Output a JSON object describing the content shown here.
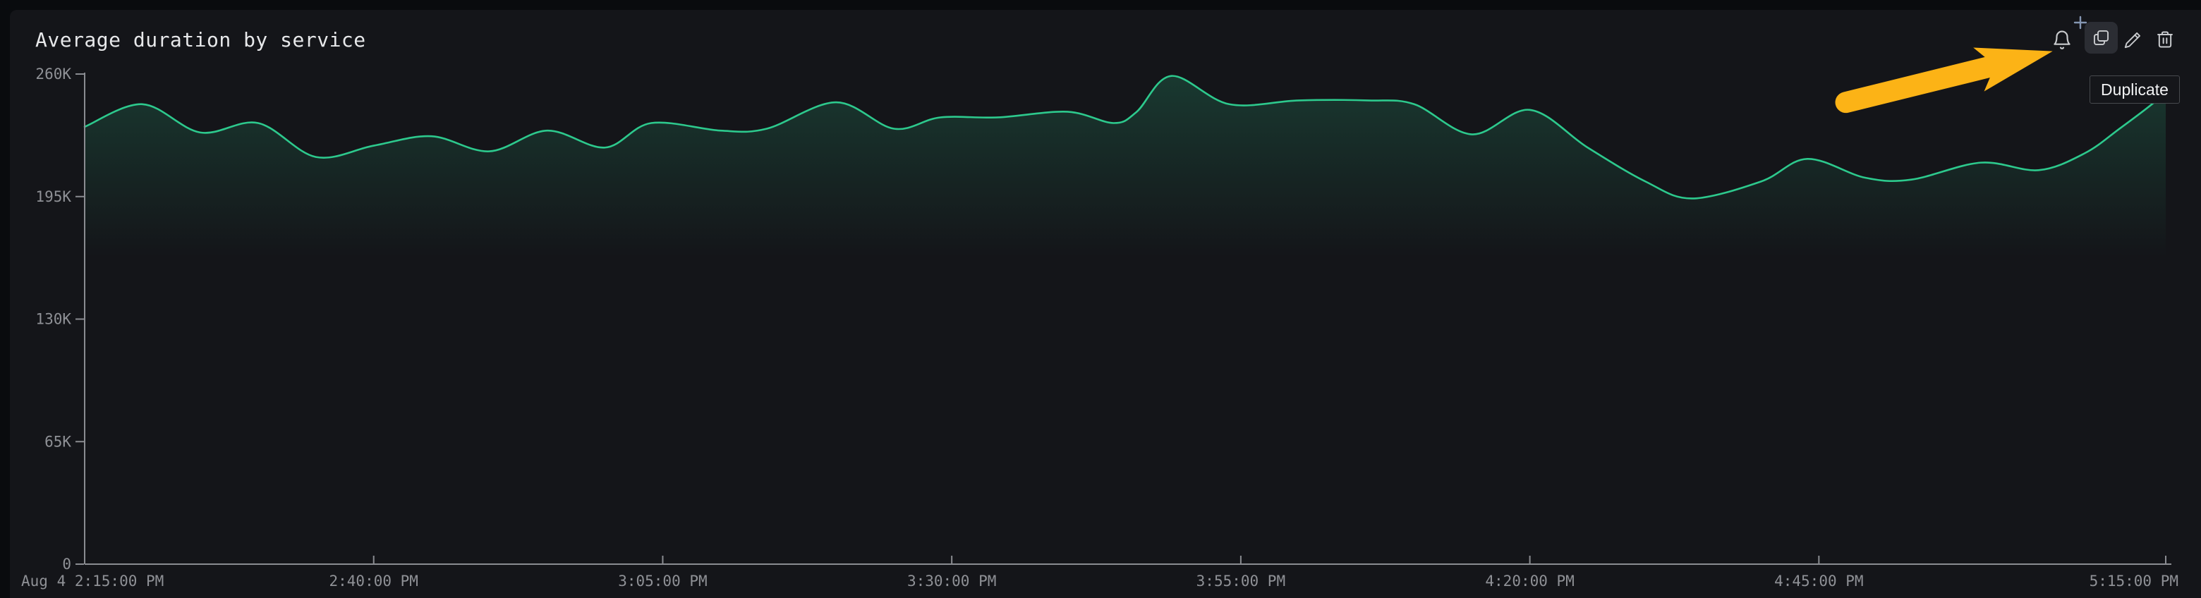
{
  "panel": {
    "title": "Average duration by service"
  },
  "toolbar": {
    "buttons": [
      {
        "name": "create-monitor",
        "icon": "bell-plus-icon",
        "state": "normal"
      },
      {
        "name": "duplicate",
        "icon": "duplicate-icon",
        "state": "hovered"
      },
      {
        "name": "edit",
        "icon": "pencil-icon",
        "state": "normal"
      },
      {
        "name": "delete",
        "icon": "trash-icon",
        "state": "normal"
      }
    ]
  },
  "tooltip": {
    "label": "Duplicate",
    "target": "duplicate-button"
  },
  "annotation": {
    "type": "arrow",
    "color": "#FCB316",
    "points_to": "duplicate-button"
  },
  "colors": {
    "background_outer": "#090b0e",
    "background_panel": "#141519",
    "line_green": "#2dc98d",
    "area_fill_green": "rgba(45,201,141,0.20)",
    "axis_line": "#8a8c91",
    "axis_label": "#8f9196",
    "title_text": "#e7e8ea",
    "icon_gray": "#c9cbce",
    "plus_blue_gray": "#8496b2",
    "arrow_yellow": "#FCB316",
    "hover_button_bg": "#2b2d33"
  },
  "chart_data": {
    "type": "line",
    "title": "Average duration by service",
    "xlabel": "",
    "ylabel": "",
    "grid": false,
    "legend": "none",
    "ylim": [
      0,
      260000
    ],
    "x_total_minutes": 180,
    "x_start_label": "Aug 4 2:15:00 PM",
    "x_end_label": "5:15:00 PM",
    "y_ticks": [
      {
        "v": 0,
        "label": "0"
      },
      {
        "v": 65000,
        "label": "65K"
      },
      {
        "v": 130000,
        "label": "130K"
      },
      {
        "v": 195000,
        "label": "195K"
      },
      {
        "v": 260000,
        "label": "260K"
      }
    ],
    "x_ticks": [
      {
        "t": 0,
        "label": "Aug 4 2:15:00 PM",
        "align": "start"
      },
      {
        "t": 25,
        "label": "2:40:00 PM"
      },
      {
        "t": 50,
        "label": "3:05:00 PM"
      },
      {
        "t": 75,
        "label": "3:30:00 PM"
      },
      {
        "t": 100,
        "label": "3:55:00 PM"
      },
      {
        "t": 125,
        "label": "4:20:00 PM"
      },
      {
        "t": 150,
        "label": "4:45:00 PM"
      },
      {
        "t": 180,
        "label": "5:15:00 PM",
        "align": "end"
      }
    ],
    "series": [
      {
        "name": "Average duration",
        "color": "#2dc98d",
        "points": [
          [
            0,
            232000
          ],
          [
            5,
            244000
          ],
          [
            10,
            229000
          ],
          [
            15,
            234000
          ],
          [
            20,
            216000
          ],
          [
            25,
            222000
          ],
          [
            30,
            227000
          ],
          [
            35,
            219000
          ],
          [
            40,
            230000
          ],
          [
            45,
            221000
          ],
          [
            49,
            234000
          ],
          [
            55,
            230000
          ],
          [
            59,
            231000
          ],
          [
            65,
            245000
          ],
          [
            70,
            231000
          ],
          [
            74,
            237000
          ],
          [
            79,
            237000
          ],
          [
            85,
            240000
          ],
          [
            89,
            234000
          ],
          [
            91,
            240000
          ],
          [
            94,
            259000
          ],
          [
            99,
            244000
          ],
          [
            105,
            246000
          ],
          [
            111,
            246000
          ],
          [
            115,
            244000
          ],
          [
            120,
            228000
          ],
          [
            125,
            241000
          ],
          [
            130,
            221000
          ],
          [
            135,
            203000
          ],
          [
            139,
            194000
          ],
          [
            145,
            203000
          ],
          [
            149,
            215000
          ],
          [
            154,
            205000
          ],
          [
            158,
            204000
          ],
          [
            164,
            213000
          ],
          [
            169,
            209000
          ],
          [
            173,
            218000
          ],
          [
            176,
            231000
          ],
          [
            179,
            245000
          ],
          [
            180,
            252000
          ]
        ]
      }
    ]
  }
}
